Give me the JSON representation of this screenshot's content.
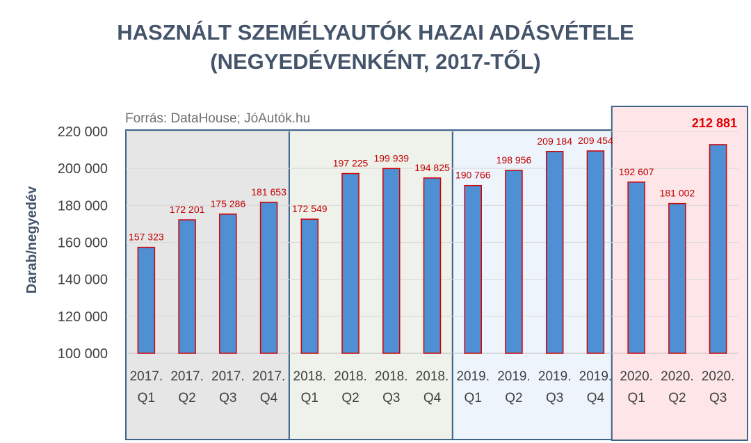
{
  "title_line1": "HASZNÁLT SZEMÉLYAUTÓK HAZAI ADÁSVÉTELE",
  "title_line2": "(NEGYEDÉVENKÉNT, 2017-TŐL)",
  "source": "Forrás: DataHouse; JóAutók.hu",
  "colors": {
    "bar_fill": "#4f8fd3",
    "bar_stroke": "#d00000",
    "label": "#c00000",
    "title": "#44546a",
    "group_2017": "#e6e6e6",
    "group_2018": "#eef2ea",
    "group_2019": "#eef4fb",
    "group_2020": "#fde5e8",
    "group_border": "#3f6487"
  },
  "chart_data": {
    "type": "bar",
    "title": "HASZNÁLT SZEMÉLYAUTÓK HAZAI ADÁSVÉTELE (NEGYEDÉVENKÉNT, 2017-TŐL)",
    "xlabel": "",
    "ylabel": "Darab/negyedév",
    "ylim": [
      100000,
      220000
    ],
    "yticks": [
      "100 000",
      "120 000",
      "140 000",
      "160 000",
      "180 000",
      "200 000",
      "220 000"
    ],
    "grid": true,
    "categories": [
      [
        "2017.",
        "Q1"
      ],
      [
        "2017.",
        "Q2"
      ],
      [
        "2017.",
        "Q3"
      ],
      [
        "2017.",
        "Q4"
      ],
      [
        "2018.",
        "Q1"
      ],
      [
        "2018.",
        "Q2"
      ],
      [
        "2018.",
        "Q3"
      ],
      [
        "2018.",
        "Q4"
      ],
      [
        "2019.",
        "Q1"
      ],
      [
        "2019.",
        "Q2"
      ],
      [
        "2019.",
        "Q3"
      ],
      [
        "2019.",
        "Q4"
      ],
      [
        "2020.",
        "Q1"
      ],
      [
        "2020.",
        "Q2"
      ],
      [
        "2020.",
        "Q3"
      ]
    ],
    "values": [
      157323,
      172201,
      175286,
      181653,
      172549,
      197225,
      199939,
      194825,
      190766,
      198956,
      209184,
      209454,
      192607,
      181002,
      212881
    ],
    "labels": [
      "157 323",
      "172 201",
      "175 286",
      "181 653",
      "172 549",
      "197 225",
      "199 939",
      "194 825",
      "190 766",
      "198 956",
      "209 184",
      "209 454",
      "192 607",
      "181 002",
      "212 881"
    ],
    "highlight_index": 14,
    "groups": [
      {
        "name": "2017",
        "start": 0,
        "end": 3
      },
      {
        "name": "2018",
        "start": 4,
        "end": 7
      },
      {
        "name": "2019",
        "start": 8,
        "end": 11
      },
      {
        "name": "2020",
        "start": 12,
        "end": 14
      }
    ]
  }
}
